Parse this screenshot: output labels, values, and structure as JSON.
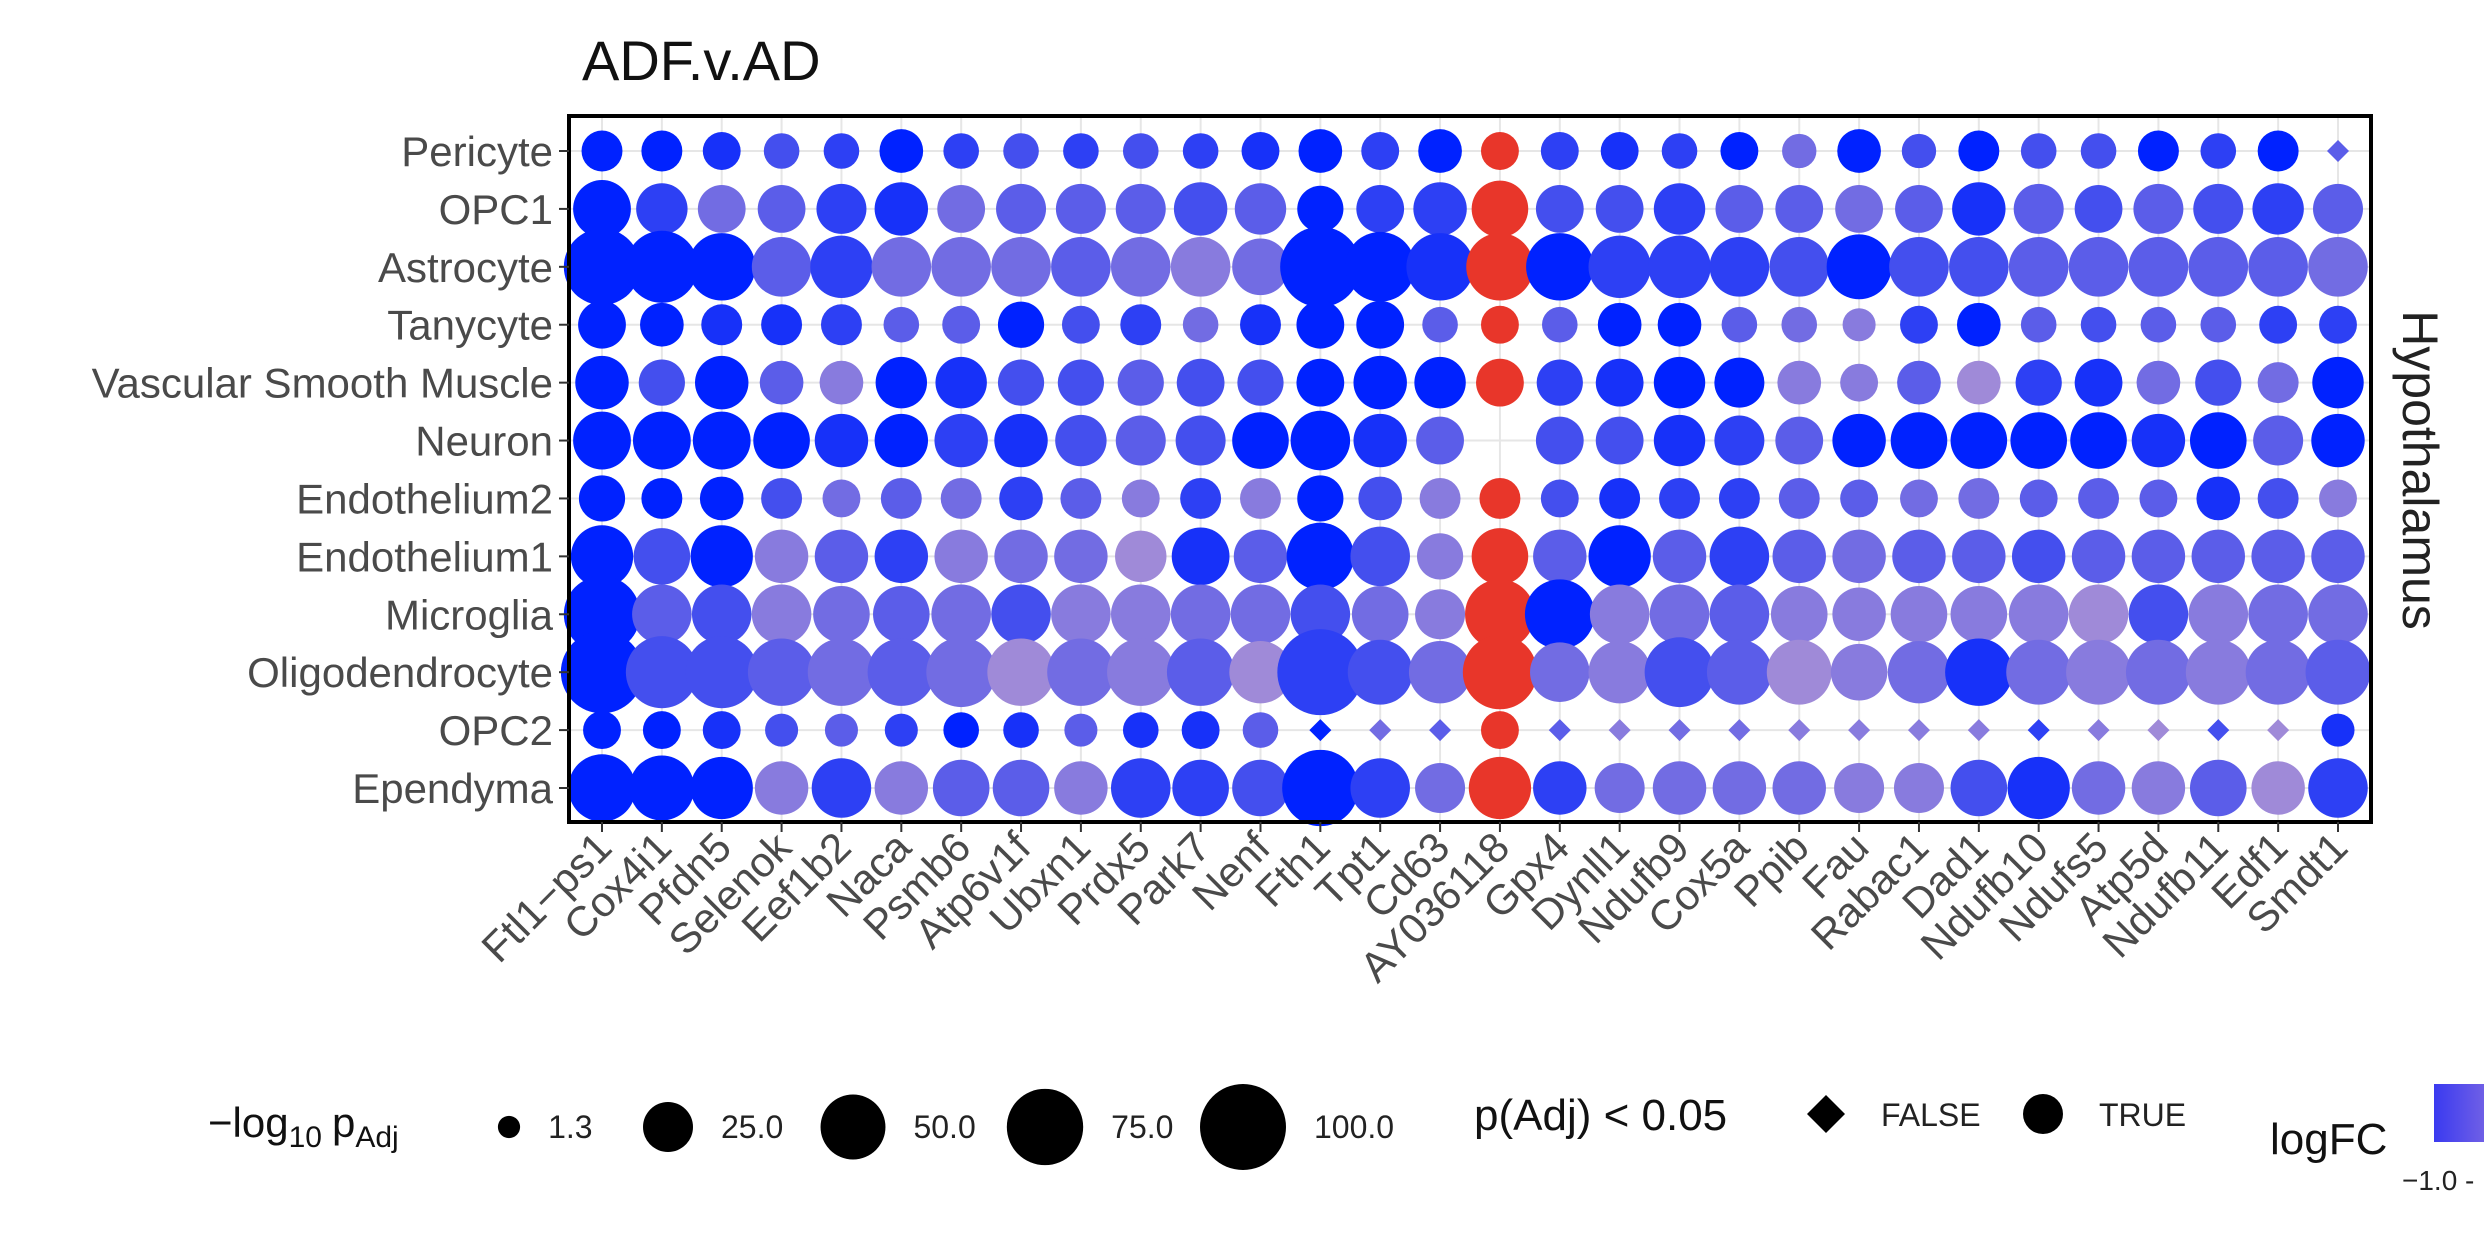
{
  "chart_data": {
    "type": "scatter",
    "title": "ADF.v.AD",
    "facet_label": "Hypothalamus",
    "x_categories": [
      "Ftl1−ps1",
      "Cox4i1",
      "Pfdn5",
      "Selenok",
      "Eef1b2",
      "Naca",
      "Psmb6",
      "Atp6v1f",
      "Ubxn1",
      "Prdx5",
      "Park7",
      "Nenf",
      "Fth1",
      "Tpt1",
      "Cd63",
      "AY036118",
      "Gpx4",
      "Dynll1",
      "Ndufb9",
      "Cox5a",
      "Ppib",
      "Fau",
      "Rabac1",
      "Dad1",
      "Ndufb10",
      "Ndufs5",
      "Atp5d",
      "Ndufb11",
      "Edf1",
      "Smdt1"
    ],
    "y_categories": [
      "Pericyte",
      "OPC1",
      "Astrocyte",
      "Tanycyte",
      "Vascular Smooth Muscle",
      "Neuron",
      "Endothelium2",
      "Endothelium1",
      "Microglia",
      "Oligodendrocyte",
      "OPC2",
      "Ependyma"
    ],
    "size_encoding": "−log10 pAdj",
    "color_encoding": "logFC",
    "shape_encoding": "p(Adj) < 0.05",
    "neg_log10_padj": [
      [
        14,
        14,
        11,
        9,
        9,
        17,
        9,
        9,
        9,
        9,
        9,
        11,
        17,
        11,
        17,
        11,
        11,
        11,
        9,
        11,
        8,
        17,
        8,
        14,
        9,
        9,
        14,
        9,
        14,
        5
      ],
      [
        37,
        27,
        22,
        22,
        25,
        30,
        22,
        25,
        25,
        25,
        30,
        27,
        20,
        22,
        30,
        35,
        22,
        22,
        27,
        22,
        22,
        22,
        22,
        30,
        25,
        22,
        25,
        25,
        27,
        25
      ],
      [
        75,
        65,
        55,
        40,
        45,
        40,
        40,
        40,
        40,
        40,
        40,
        35,
        85,
        60,
        55,
        55,
        55,
        45,
        45,
        40,
        40,
        50,
        40,
        40,
        40,
        40,
        40,
        40,
        40,
        40
      ],
      [
        22,
        17,
        14,
        14,
        14,
        9,
        11,
        20,
        11,
        14,
        9,
        14,
        22,
        22,
        9,
        11,
        9,
        17,
        17,
        9,
        9,
        7,
        11,
        17,
        9,
        9,
        9,
        9,
        11,
        11
      ],
      [
        30,
        20,
        30,
        17,
        17,
        27,
        27,
        20,
        20,
        20,
        22,
        20,
        22,
        30,
        27,
        22,
        20,
        22,
        27,
        25,
        17,
        11,
        17,
        17,
        20,
        22,
        17,
        20,
        14,
        27
      ],
      [
        37,
        37,
        37,
        35,
        30,
        30,
        30,
        30,
        27,
        25,
        25,
        35,
        40,
        30,
        22,
        0,
        22,
        22,
        27,
        25,
        22,
        30,
        35,
        35,
        35,
        35,
        30,
        35,
        25,
        30
      ],
      [
        20,
        14,
        17,
        14,
        11,
        14,
        14,
        17,
        14,
        11,
        14,
        14,
        20,
        17,
        14,
        14,
        11,
        14,
        14,
        14,
        14,
        11,
        11,
        14,
        11,
        14,
        11,
        17,
        14,
        11
      ],
      [
        45,
        35,
        45,
        30,
        30,
        30,
        30,
        30,
        30,
        27,
        37,
        30,
        55,
        40,
        20,
        35,
        30,
        45,
        30,
        40,
        30,
        30,
        30,
        30,
        30,
        30,
        30,
        30,
        30,
        30
      ],
      [
        75,
        40,
        40,
        40,
        35,
        35,
        40,
        40,
        40,
        40,
        40,
        40,
        40,
        35,
        25,
        60,
        60,
        40,
        40,
        40,
        35,
        30,
        35,
        35,
        40,
        40,
        40,
        40,
        40,
        40
      ],
      [
        90,
        65,
        65,
        55,
        55,
        55,
        60,
        55,
        55,
        55,
        55,
        45,
        100,
        50,
        45,
        70,
        40,
        45,
        60,
        50,
        50,
        35,
        45,
        55,
        50,
        50,
        50,
        50,
        50,
        50
      ],
      [
        11,
        11,
        11,
        7,
        7,
        7,
        9,
        9,
        7,
        9,
        11,
        9,
        1,
        1,
        1,
        11,
        1,
        1,
        1,
        1,
        1,
        1,
        1,
        1,
        1,
        1,
        1,
        1,
        1,
        7
      ],
      [
        55,
        50,
        45,
        30,
        40,
        30,
        35,
        35,
        30,
        40,
        35,
        35,
        75,
        40,
        25,
        45,
        30,
        25,
        30,
        30,
        30,
        25,
        25,
        35,
        45,
        30,
        30,
        35,
        30,
        40
      ]
    ],
    "significant": [
      [
        1,
        1,
        1,
        1,
        1,
        1,
        1,
        1,
        1,
        1,
        1,
        1,
        1,
        1,
        1,
        1,
        1,
        1,
        1,
        1,
        1,
        1,
        1,
        1,
        1,
        1,
        1,
        1,
        1,
        0
      ],
      [
        1,
        1,
        1,
        1,
        1,
        1,
        1,
        1,
        1,
        1,
        1,
        1,
        1,
        1,
        1,
        1,
        1,
        1,
        1,
        1,
        1,
        1,
        1,
        1,
        1,
        1,
        1,
        1,
        1,
        1
      ],
      [
        1,
        1,
        1,
        1,
        1,
        1,
        1,
        1,
        1,
        1,
        1,
        1,
        1,
        1,
        1,
        1,
        1,
        1,
        1,
        1,
        1,
        1,
        1,
        1,
        1,
        1,
        1,
        1,
        1,
        1
      ],
      [
        1,
        1,
        1,
        1,
        1,
        1,
        1,
        1,
        1,
        1,
        1,
        1,
        1,
        1,
        1,
        1,
        1,
        1,
        1,
        1,
        1,
        1,
        1,
        1,
        1,
        1,
        1,
        1,
        1,
        1
      ],
      [
        1,
        1,
        1,
        1,
        1,
        1,
        1,
        1,
        1,
        1,
        1,
        1,
        1,
        1,
        1,
        1,
        1,
        1,
        1,
        1,
        1,
        1,
        1,
        1,
        1,
        1,
        1,
        1,
        1,
        1
      ],
      [
        1,
        1,
        1,
        1,
        1,
        1,
        1,
        1,
        1,
        1,
        1,
        1,
        1,
        1,
        1,
        0,
        1,
        1,
        1,
        1,
        1,
        1,
        1,
        1,
        1,
        1,
        1,
        1,
        1,
        1
      ],
      [
        1,
        1,
        1,
        1,
        1,
        1,
        1,
        1,
        1,
        1,
        1,
        1,
        1,
        1,
        1,
        1,
        1,
        1,
        1,
        1,
        1,
        1,
        1,
        1,
        1,
        1,
        1,
        1,
        1,
        1
      ],
      [
        1,
        1,
        1,
        1,
        1,
        1,
        1,
        1,
        1,
        1,
        1,
        1,
        1,
        1,
        1,
        1,
        1,
        1,
        1,
        1,
        1,
        1,
        1,
        1,
        1,
        1,
        1,
        1,
        1,
        1
      ],
      [
        1,
        1,
        1,
        1,
        1,
        1,
        1,
        1,
        1,
        1,
        1,
        1,
        1,
        1,
        1,
        1,
        1,
        1,
        1,
        1,
        1,
        1,
        1,
        1,
        1,
        1,
        1,
        1,
        1,
        1
      ],
      [
        1,
        1,
        1,
        1,
        1,
        1,
        1,
        1,
        1,
        1,
        1,
        1,
        1,
        1,
        1,
        1,
        1,
        1,
        1,
        1,
        1,
        1,
        1,
        1,
        1,
        1,
        1,
        1,
        1,
        1
      ],
      [
        1,
        1,
        1,
        1,
        1,
        1,
        1,
        1,
        1,
        1,
        1,
        1,
        0,
        0,
        0,
        1,
        0,
        0,
        0,
        0,
        0,
        0,
        0,
        0,
        0,
        0,
        0,
        0,
        0,
        1
      ],
      [
        1,
        1,
        1,
        1,
        1,
        1,
        1,
        1,
        1,
        1,
        1,
        1,
        1,
        1,
        1,
        1,
        1,
        1,
        1,
        1,
        1,
        1,
        1,
        1,
        1,
        1,
        1,
        1,
        1,
        1
      ]
    ],
    "present": [
      [
        1,
        1,
        1,
        1,
        1,
        1,
        1,
        1,
        1,
        1,
        1,
        1,
        1,
        1,
        1,
        1,
        1,
        1,
        1,
        1,
        1,
        1,
        1,
        1,
        1,
        1,
        1,
        1,
        1,
        1
      ],
      [
        1,
        1,
        1,
        1,
        1,
        1,
        1,
        1,
        1,
        1,
        1,
        1,
        1,
        1,
        1,
        1,
        1,
        1,
        1,
        1,
        1,
        1,
        1,
        1,
        1,
        1,
        1,
        1,
        1,
        1
      ],
      [
        1,
        1,
        1,
        1,
        1,
        1,
        1,
        1,
        1,
        1,
        1,
        1,
        1,
        1,
        1,
        1,
        1,
        1,
        1,
        1,
        1,
        1,
        1,
        1,
        1,
        1,
        1,
        1,
        1,
        1
      ],
      [
        1,
        1,
        1,
        1,
        1,
        1,
        1,
        1,
        1,
        1,
        1,
        1,
        1,
        1,
        1,
        1,
        1,
        1,
        1,
        1,
        1,
        1,
        1,
        1,
        1,
        1,
        1,
        1,
        1,
        1
      ],
      [
        1,
        1,
        1,
        1,
        1,
        1,
        1,
        1,
        1,
        1,
        1,
        1,
        1,
        1,
        1,
        1,
        1,
        1,
        1,
        1,
        1,
        1,
        1,
        1,
        1,
        1,
        1,
        1,
        1,
        1
      ],
      [
        1,
        1,
        1,
        1,
        1,
        1,
        1,
        1,
        1,
        1,
        1,
        1,
        1,
        1,
        1,
        0,
        1,
        1,
        1,
        1,
        1,
        1,
        1,
        1,
        1,
        1,
        1,
        1,
        1,
        1
      ],
      [
        1,
        1,
        1,
        1,
        1,
        1,
        1,
        1,
        1,
        1,
        1,
        1,
        1,
        1,
        1,
        1,
        1,
        1,
        1,
        1,
        1,
        1,
        1,
        1,
        1,
        1,
        1,
        1,
        1,
        1
      ],
      [
        1,
        1,
        1,
        1,
        1,
        1,
        1,
        1,
        1,
        1,
        1,
        1,
        1,
        1,
        1,
        1,
        1,
        1,
        1,
        1,
        1,
        1,
        1,
        1,
        1,
        1,
        1,
        1,
        1,
        1
      ],
      [
        1,
        1,
        1,
        1,
        1,
        1,
        1,
        1,
        1,
        1,
        1,
        1,
        1,
        1,
        1,
        1,
        1,
        1,
        1,
        1,
        1,
        1,
        1,
        1,
        1,
        1,
        1,
        1,
        1,
        1
      ],
      [
        1,
        1,
        1,
        1,
        1,
        1,
        1,
        1,
        1,
        1,
        1,
        1,
        1,
        1,
        1,
        1,
        1,
        1,
        1,
        1,
        1,
        1,
        1,
        1,
        1,
        1,
        1,
        1,
        1,
        1
      ],
      [
        1,
        1,
        1,
        1,
        1,
        1,
        1,
        1,
        1,
        1,
        1,
        1,
        1,
        1,
        1,
        1,
        1,
        1,
        1,
        1,
        1,
        1,
        1,
        1,
        1,
        1,
        1,
        1,
        1,
        1
      ],
      [
        1,
        1,
        1,
        1,
        1,
        1,
        1,
        1,
        1,
        1,
        1,
        1,
        1,
        1,
        1,
        1,
        1,
        1,
        1,
        1,
        1,
        1,
        1,
        1,
        1,
        1,
        1,
        1,
        1,
        1
      ]
    ],
    "logfc": [
      [
        -1.0,
        -1.0,
        -0.9,
        -0.7,
        -0.8,
        -1.0,
        -0.8,
        -0.7,
        -0.8,
        -0.7,
        -0.8,
        -0.9,
        -1.0,
        -0.8,
        -1.0,
        0.8,
        -0.8,
        -0.9,
        -0.8,
        -1.0,
        -0.5,
        -1.0,
        -0.7,
        -1.0,
        -0.7,
        -0.7,
        -1.0,
        -0.8,
        -1.0,
        -0.6
      ],
      [
        -1.0,
        -0.8,
        -0.5,
        -0.6,
        -0.8,
        -0.9,
        -0.5,
        -0.6,
        -0.6,
        -0.6,
        -0.7,
        -0.6,
        -1.0,
        -0.8,
        -0.8,
        0.8,
        -0.7,
        -0.7,
        -0.8,
        -0.6,
        -0.6,
        -0.5,
        -0.6,
        -0.9,
        -0.6,
        -0.7,
        -0.6,
        -0.7,
        -0.8,
        -0.6
      ],
      [
        -1.0,
        -1.0,
        -1.0,
        -0.6,
        -0.8,
        -0.5,
        -0.5,
        -0.5,
        -0.6,
        -0.5,
        -0.4,
        -0.5,
        -1.0,
        -1.0,
        -0.9,
        0.8,
        -1.0,
        -0.8,
        -0.8,
        -0.8,
        -0.7,
        -1.0,
        -0.7,
        -0.7,
        -0.6,
        -0.6,
        -0.6,
        -0.6,
        -0.6,
        -0.5
      ],
      [
        -1.0,
        -1.0,
        -0.9,
        -0.9,
        -0.8,
        -0.6,
        -0.6,
        -1.0,
        -0.7,
        -0.8,
        -0.5,
        -0.9,
        -1.0,
        -1.0,
        -0.6,
        0.8,
        -0.6,
        -1.0,
        -1.0,
        -0.6,
        -0.5,
        -0.4,
        -0.8,
        -1.0,
        -0.6,
        -0.7,
        -0.6,
        -0.6,
        -0.8,
        -0.8
      ],
      [
        -1.0,
        -0.7,
        -1.0,
        -0.6,
        -0.4,
        -1.0,
        -0.9,
        -0.7,
        -0.7,
        -0.6,
        -0.7,
        -0.7,
        -1.0,
        -1.0,
        -1.0,
        0.8,
        -0.8,
        -0.9,
        -1.0,
        -1.0,
        -0.4,
        -0.4,
        -0.6,
        -0.3,
        -0.8,
        -0.9,
        -0.5,
        -0.7,
        -0.5,
        -1.0
      ],
      [
        -1.0,
        -1.0,
        -1.0,
        -1.0,
        -0.9,
        -1.0,
        -0.8,
        -0.9,
        -0.7,
        -0.6,
        -0.7,
        -1.0,
        -1.0,
        -0.9,
        -0.6,
        0.0,
        -0.7,
        -0.7,
        -0.9,
        -0.8,
        -0.6,
        -1.0,
        -1.0,
        -1.0,
        -1.0,
        -1.0,
        -0.9,
        -1.0,
        -0.6,
        -1.0
      ],
      [
        -1.0,
        -1.0,
        -1.0,
        -0.7,
        -0.5,
        -0.6,
        -0.5,
        -0.8,
        -0.6,
        -0.4,
        -0.8,
        -0.4,
        -1.0,
        -0.7,
        -0.4,
        0.8,
        -0.7,
        -0.9,
        -0.8,
        -0.8,
        -0.6,
        -0.6,
        -0.5,
        -0.5,
        -0.6,
        -0.6,
        -0.6,
        -0.9,
        -0.7,
        -0.4
      ],
      [
        -1.0,
        -0.7,
        -1.0,
        -0.4,
        -0.6,
        -0.8,
        -0.4,
        -0.5,
        -0.5,
        -0.3,
        -0.9,
        -0.6,
        -1.0,
        -0.7,
        -0.4,
        0.8,
        -0.6,
        -1.0,
        -0.6,
        -0.8,
        -0.6,
        -0.5,
        -0.6,
        -0.6,
        -0.7,
        -0.6,
        -0.6,
        -0.6,
        -0.6,
        -0.6
      ],
      [
        -1.0,
        -0.6,
        -0.7,
        -0.4,
        -0.5,
        -0.6,
        -0.5,
        -0.7,
        -0.4,
        -0.4,
        -0.5,
        -0.5,
        -0.7,
        -0.5,
        -0.4,
        0.8,
        -1.0,
        -0.4,
        -0.5,
        -0.6,
        -0.4,
        -0.4,
        -0.4,
        -0.4,
        -0.4,
        -0.3,
        -0.7,
        -0.4,
        -0.5,
        -0.5
      ],
      [
        -1.0,
        -0.7,
        -0.7,
        -0.6,
        -0.5,
        -0.6,
        -0.5,
        -0.3,
        -0.5,
        -0.4,
        -0.6,
        -0.3,
        -0.8,
        -0.7,
        -0.5,
        0.8,
        -0.5,
        -0.4,
        -0.7,
        -0.6,
        -0.3,
        -0.4,
        -0.5,
        -0.9,
        -0.5,
        -0.4,
        -0.5,
        -0.4,
        -0.5,
        -0.6
      ],
      [
        -1.0,
        -1.0,
        -0.9,
        -0.7,
        -0.6,
        -0.8,
        -1.0,
        -0.9,
        -0.6,
        -0.9,
        -0.9,
        -0.6,
        -1.0,
        -0.5,
        -0.6,
        0.8,
        -0.6,
        -0.4,
        -0.5,
        -0.5,
        -0.4,
        -0.4,
        -0.4,
        -0.4,
        -0.8,
        -0.4,
        -0.3,
        -0.7,
        -0.3,
        -0.9
      ],
      [
        -1.0,
        -1.0,
        -1.0,
        -0.4,
        -0.8,
        -0.4,
        -0.6,
        -0.6,
        -0.4,
        -0.8,
        -0.8,
        -0.7,
        -1.0,
        -0.8,
        -0.5,
        0.8,
        -0.8,
        -0.5,
        -0.5,
        -0.5,
        -0.5,
        -0.4,
        -0.4,
        -0.7,
        -0.9,
        -0.5,
        -0.4,
        -0.6,
        -0.3,
        -0.8
      ]
    ],
    "colors": {
      "negative": "#0022ff",
      "neutral": "#9f8ad8",
      "positive": "#e8362a"
    },
    "grid": true,
    "legend_position": "bottom",
    "size_legend": {
      "title": "−log10 pAdj",
      "title_main": "−log",
      "title_sub": "10",
      "title_p": "p",
      "title_p_sub": "Adj",
      "values": [
        1.3,
        25,
        50,
        75,
        100
      ],
      "labels": [
        "1.3",
        "25.0",
        "50.0",
        "75.0",
        "100.0"
      ]
    },
    "shape_legend": {
      "title": "p(Adj) < 0.05",
      "entries": [
        "FALSE",
        "TRUE"
      ]
    },
    "color_legend": {
      "title": "logFC",
      "visible_tick": "−1.0 -"
    }
  }
}
